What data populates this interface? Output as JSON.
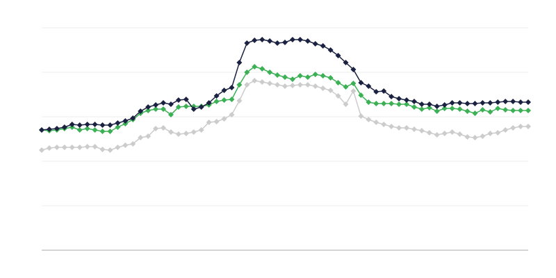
{
  "chart_data": {
    "type": "line",
    "categories": [
      null,
      null,
      null,
      null,
      null,
      null,
      null,
      null,
      null,
      null,
      null,
      null,
      null,
      null,
      null,
      null,
      null,
      null,
      null,
      null,
      null,
      null,
      null,
      null,
      null,
      null,
      null,
      null,
      null,
      null,
      null,
      null,
      null,
      null,
      null,
      null,
      null,
      null,
      null,
      null,
      null,
      null,
      null,
      null,
      null,
      null,
      null,
      null,
      null,
      null,
      null,
      null,
      null,
      null,
      null,
      null,
      null,
      null,
      null,
      null,
      null,
      null,
      null,
      null,
      null
    ],
    "series": [
      {
        "color": "#cccccc",
        "values": [
          144,
          147,
          148,
          148,
          148,
          148,
          149,
          149,
          145,
          144,
          148,
          151,
          153,
          162,
          164,
          175,
          176,
          170,
          167,
          168,
          170,
          173,
          184,
          185,
          189,
          195,
          215,
          238,
          244,
          242,
          240,
          238,
          236,
          237,
          238,
          238,
          236,
          233,
          230,
          222,
          210,
          229,
          193,
          188,
          184,
          181,
          178,
          176,
          176,
          174,
          172,
          169,
          166,
          168,
          170,
          167,
          163,
          162,
          164,
          168,
          169,
          173,
          176,
          178,
          178
        ]
      },
      {
        "color": "#3cb054",
        "values": [
          173,
          172,
          173,
          175,
          177,
          173,
          175,
          173,
          171,
          171,
          177,
          182,
          188,
          197,
          201,
          203,
          203,
          195,
          206,
          207,
          207,
          207,
          209,
          214,
          216,
          217,
          238,
          256,
          264,
          261,
          256,
          252,
          249,
          246,
          251,
          249,
          253,
          251,
          248,
          241,
          235,
          240,
          223,
          213,
          211,
          211,
          211,
          210,
          210,
          206,
          203,
          205,
          200,
          204,
          204,
          203,
          200,
          197,
          202,
          199,
          204,
          202,
          201,
          201,
          201
        ]
      },
      {
        "color": "#1b2140",
        "values": [
          173,
          174,
          175,
          177,
          181,
          180,
          181,
          181,
          180,
          180,
          183,
          186,
          190,
          200,
          206,
          209,
          212,
          210,
          216,
          217,
          203,
          206,
          212,
          222,
          230,
          234,
          270,
          298,
          302,
          303,
          301,
          298,
          299,
          303,
          303,
          301,
          297,
          294,
          288,
          280,
          270,
          260,
          241,
          236,
          228,
          229,
          221,
          218,
          216,
          214,
          210,
          210,
          207,
          209,
          212,
          212,
          211,
          211,
          212,
          212,
          213,
          214,
          214,
          213,
          213
        ]
      }
    ],
    "ylim": [
      0,
      320
    ],
    "yticks": [
      0,
      64,
      128,
      192,
      256,
      320
    ],
    "grid": true
  }
}
